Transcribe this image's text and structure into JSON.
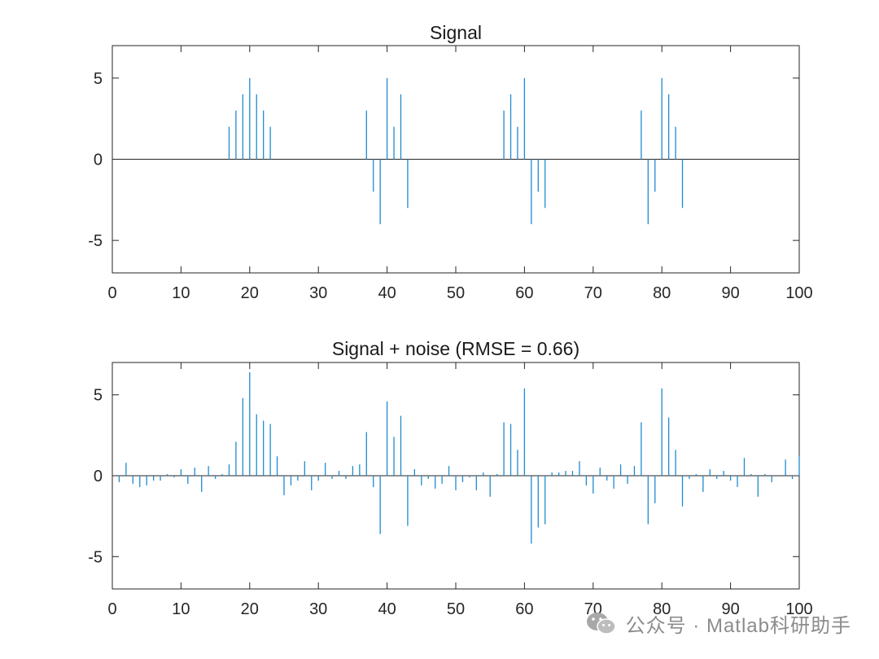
{
  "colors": {
    "stem": "#1f8ad0",
    "axis": "#262626",
    "text": "#1a1a1a"
  },
  "watermark": {
    "text": "公众号 · Matlab科研助手",
    "icon": "wechat-icon"
  },
  "chart_data": [
    {
      "type": "stem",
      "title": "Signal",
      "xlim": [
        0,
        100
      ],
      "ylim": [
        -7,
        7
      ],
      "xticks": [
        0,
        10,
        20,
        30,
        40,
        50,
        60,
        70,
        80,
        90,
        100
      ],
      "yticks": [
        -5,
        0,
        5
      ],
      "grid": false,
      "x": [
        17,
        18,
        19,
        20,
        21,
        22,
        23,
        37,
        38,
        39,
        40,
        41,
        42,
        43,
        57,
        58,
        59,
        60,
        61,
        62,
        63,
        77,
        78,
        79,
        80,
        81,
        82,
        83
      ],
      "y": [
        2,
        3,
        4,
        5,
        4,
        3,
        2,
        3,
        -2,
        -4,
        5,
        2,
        4,
        -3,
        3,
        4,
        2,
        5,
        -4,
        -2,
        -3,
        3,
        -4,
        -2,
        5,
        4,
        2,
        -3
      ]
    },
    {
      "type": "stem",
      "title": "Signal + noise (RMSE = 0.66)",
      "xlim": [
        0,
        100
      ],
      "ylim": [
        -7,
        7
      ],
      "xticks": [
        0,
        10,
        20,
        30,
        40,
        50,
        60,
        70,
        80,
        90,
        100
      ],
      "yticks": [
        -5,
        0,
        5
      ],
      "grid": false,
      "x": [
        1,
        2,
        3,
        4,
        5,
        6,
        7,
        8,
        9,
        10,
        11,
        12,
        13,
        14,
        15,
        16,
        17,
        18,
        19,
        20,
        21,
        22,
        23,
        24,
        25,
        26,
        27,
        28,
        29,
        30,
        31,
        32,
        33,
        34,
        35,
        36,
        37,
        38,
        39,
        40,
        41,
        42,
        43,
        44,
        45,
        46,
        47,
        48,
        49,
        50,
        51,
        52,
        53,
        54,
        55,
        56,
        57,
        58,
        59,
        60,
        61,
        62,
        63,
        64,
        65,
        66,
        67,
        68,
        69,
        70,
        71,
        72,
        73,
        74,
        75,
        76,
        77,
        78,
        79,
        80,
        81,
        82,
        83,
        84,
        85,
        86,
        87,
        88,
        89,
        90,
        91,
        92,
        93,
        94,
        95,
        96,
        97,
        98,
        99,
        100
      ],
      "y": [
        -0.4,
        0.8,
        -0.5,
        -0.7,
        -0.6,
        -0.3,
        -0.3,
        0.1,
        -0.1,
        0.4,
        -0.5,
        0.5,
        -1.0,
        0.6,
        -0.2,
        0.1,
        0.7,
        2.1,
        4.8,
        6.4,
        3.8,
        3.4,
        3.2,
        1.2,
        -1.2,
        -0.6,
        -0.3,
        0.9,
        -0.9,
        -0.3,
        0.8,
        -0.2,
        0.3,
        -0.2,
        0.6,
        0.7,
        2.7,
        -0.7,
        -3.6,
        4.6,
        2.4,
        3.7,
        -3.1,
        0.4,
        -0.6,
        -0.2,
        -0.8,
        -0.5,
        0.6,
        -0.9,
        -0.4,
        -0.1,
        -0.9,
        0.2,
        -1.3,
        0.1,
        3.3,
        3.2,
        1.6,
        5.4,
        -4.2,
        -3.2,
        -3.0,
        0.2,
        0.2,
        0.3,
        0.3,
        0.9,
        -0.6,
        -1.1,
        0.5,
        -0.3,
        -0.8,
        0.7,
        -0.5,
        0.6,
        3.3,
        -3.0,
        -1.7,
        5.4,
        3.6,
        1.6,
        -1.9,
        -0.2,
        0.1,
        -1.0,
        0.4,
        -0.2,
        0.3,
        -0.3,
        -0.7,
        1.1,
        0.1,
        -1.3,
        0.1,
        -0.4,
        0.0,
        1.0,
        -0.2,
        1.2
      ]
    }
  ]
}
